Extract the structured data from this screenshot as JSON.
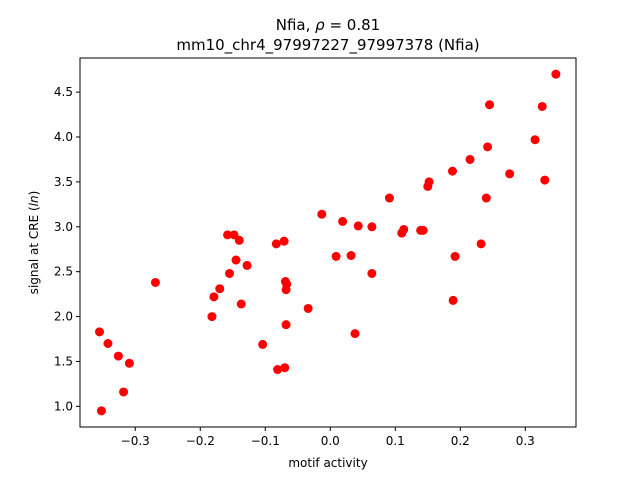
{
  "chart_data": {
    "type": "scatter",
    "title_line1_prefix": "Nfia, ",
    "title_rho_symbol": "ρ",
    "title_line1_suffix": " = 0.81",
    "title_line2": "mm10_chr4_97997227_97997378 (Nfia)",
    "xlabel": "motif activity",
    "ylabel_prefix": "signal at CRE (",
    "ylabel_italic": "ln",
    "ylabel_suffix": ")",
    "xlim": [
      -0.385,
      0.378
    ],
    "ylim": [
      0.77,
      4.88
    ],
    "xticks": [
      -0.3,
      -0.2,
      -0.1,
      0.0,
      0.1,
      0.2,
      0.3
    ],
    "xtick_labels": [
      "−0.3",
      "−0.2",
      "−0.1",
      "0.0",
      "0.1",
      "0.2",
      "0.3"
    ],
    "yticks": [
      1.0,
      1.5,
      2.0,
      2.5,
      3.0,
      3.5,
      4.0,
      4.5
    ],
    "ytick_labels": [
      "1.0",
      "1.5",
      "2.0",
      "2.5",
      "3.0",
      "3.5",
      "4.0",
      "4.5"
    ],
    "marker_color": "#ff0000",
    "grid": false,
    "points": [
      [
        -0.355,
        1.83
      ],
      [
        -0.352,
        0.95
      ],
      [
        -0.342,
        1.7
      ],
      [
        -0.326,
        1.56
      ],
      [
        -0.318,
        1.16
      ],
      [
        -0.309,
        1.48
      ],
      [
        -0.269,
        2.38
      ],
      [
        -0.182,
        2.0
      ],
      [
        -0.179,
        2.22
      ],
      [
        -0.17,
        2.31
      ],
      [
        -0.158,
        2.91
      ],
      [
        -0.155,
        2.48
      ],
      [
        -0.148,
        2.91
      ],
      [
        -0.145,
        2.63
      ],
      [
        -0.14,
        2.85
      ],
      [
        -0.137,
        2.14
      ],
      [
        -0.128,
        2.57
      ],
      [
        -0.104,
        1.69
      ],
      [
        -0.083,
        2.81
      ],
      [
        -0.081,
        1.41
      ],
      [
        -0.071,
        2.84
      ],
      [
        -0.07,
        1.43
      ],
      [
        -0.069,
        2.39
      ],
      [
        -0.068,
        1.91
      ],
      [
        -0.068,
        2.3
      ],
      [
        -0.067,
        2.36
      ],
      [
        -0.034,
        2.09
      ],
      [
        -0.013,
        3.14
      ],
      [
        0.009,
        2.67
      ],
      [
        0.019,
        3.06
      ],
      [
        0.032,
        2.68
      ],
      [
        0.038,
        1.81
      ],
      [
        0.043,
        3.01
      ],
      [
        0.064,
        3.0
      ],
      [
        0.064,
        2.48
      ],
      [
        0.091,
        3.32
      ],
      [
        0.11,
        2.93
      ],
      [
        0.113,
        2.97
      ],
      [
        0.139,
        2.96
      ],
      [
        0.143,
        2.96
      ],
      [
        0.15,
        3.45
      ],
      [
        0.152,
        3.5
      ],
      [
        0.188,
        3.62
      ],
      [
        0.189,
        2.18
      ],
      [
        0.192,
        2.67
      ],
      [
        0.215,
        3.75
      ],
      [
        0.232,
        2.81
      ],
      [
        0.24,
        3.32
      ],
      [
        0.242,
        3.89
      ],
      [
        0.245,
        4.36
      ],
      [
        0.276,
        3.59
      ],
      [
        0.315,
        3.97
      ],
      [
        0.326,
        4.34
      ],
      [
        0.33,
        3.52
      ],
      [
        0.347,
        4.7
      ]
    ]
  }
}
